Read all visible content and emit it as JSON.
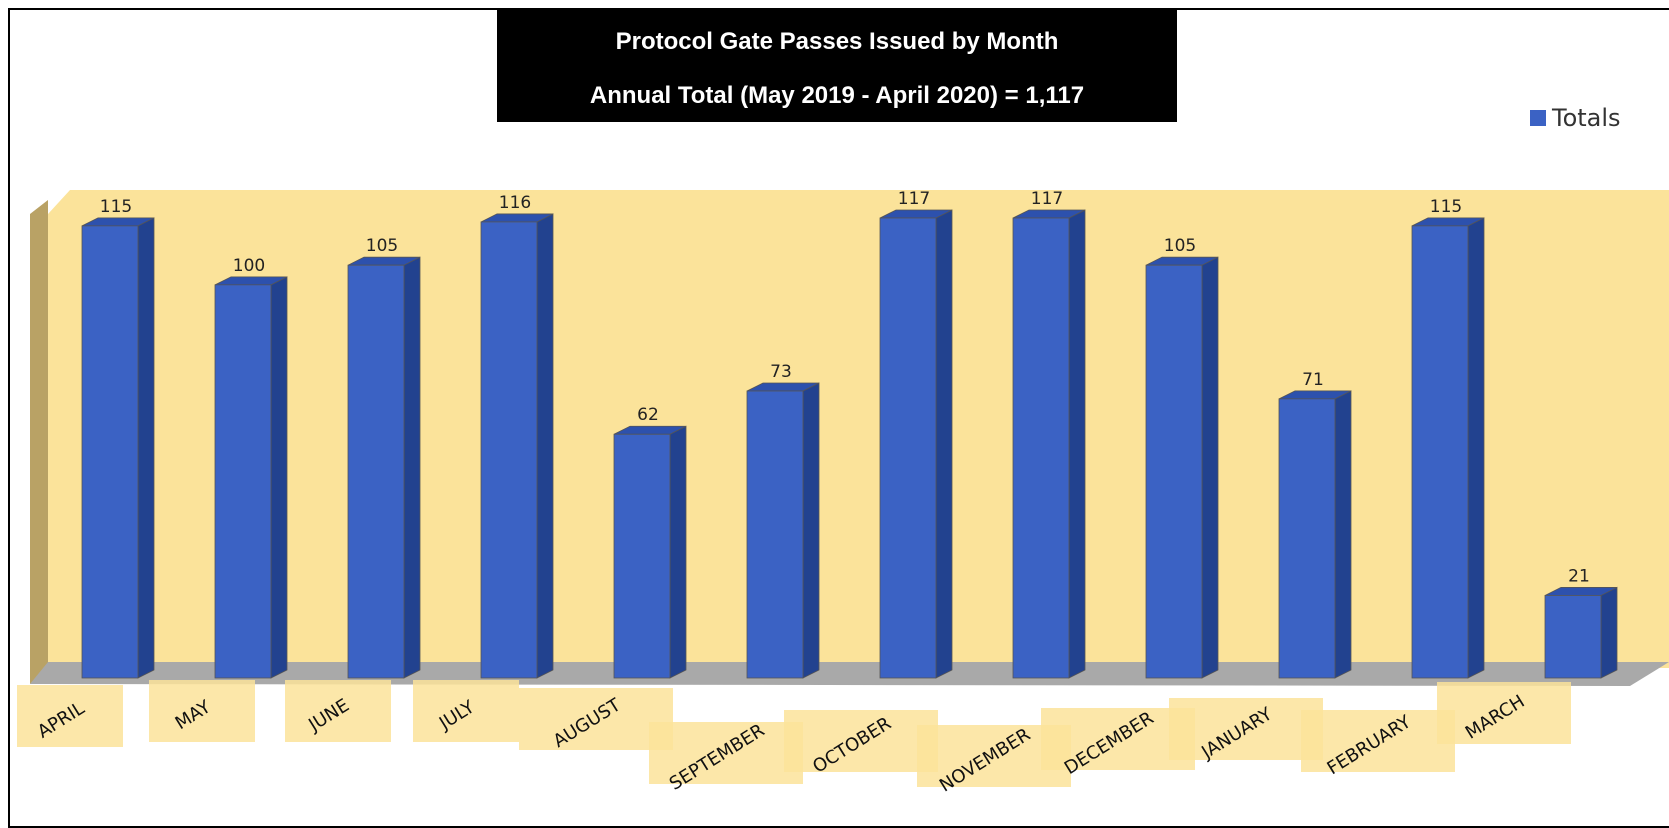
{
  "chart_data": {
    "type": "bar",
    "title": "Protocol Gate Passes Issued by Month",
    "subtitle": "Annual Total (May 2019 - April 2020) = 1,117",
    "categories": [
      "APRIL",
      "MAY",
      "JUNE",
      "JULY",
      "AUGUST",
      "SEPTEMBER",
      "OCTOBER",
      "NOVEMBER",
      "DECEMBER",
      "JANUARY",
      "FEBRUARY",
      "MARCH"
    ],
    "series": [
      {
        "name": "Totals",
        "values": [
          115,
          100,
          105,
          116,
          62,
          73,
          117,
          117,
          105,
          71,
          115,
          21
        ]
      }
    ],
    "ylim": [
      0,
      117
    ],
    "grid": false,
    "legend_position": "top-right",
    "colors": {
      "bar_front": "#3b62c4",
      "bar_side": "#22428f",
      "bar_top": "#2d51ad",
      "wall": "#fbe39a",
      "side_wall": "#b9a265",
      "floor": "#a9a9a9",
      "label_bg": "#fbe39a",
      "legend_swatch": "#3b62c4"
    }
  }
}
